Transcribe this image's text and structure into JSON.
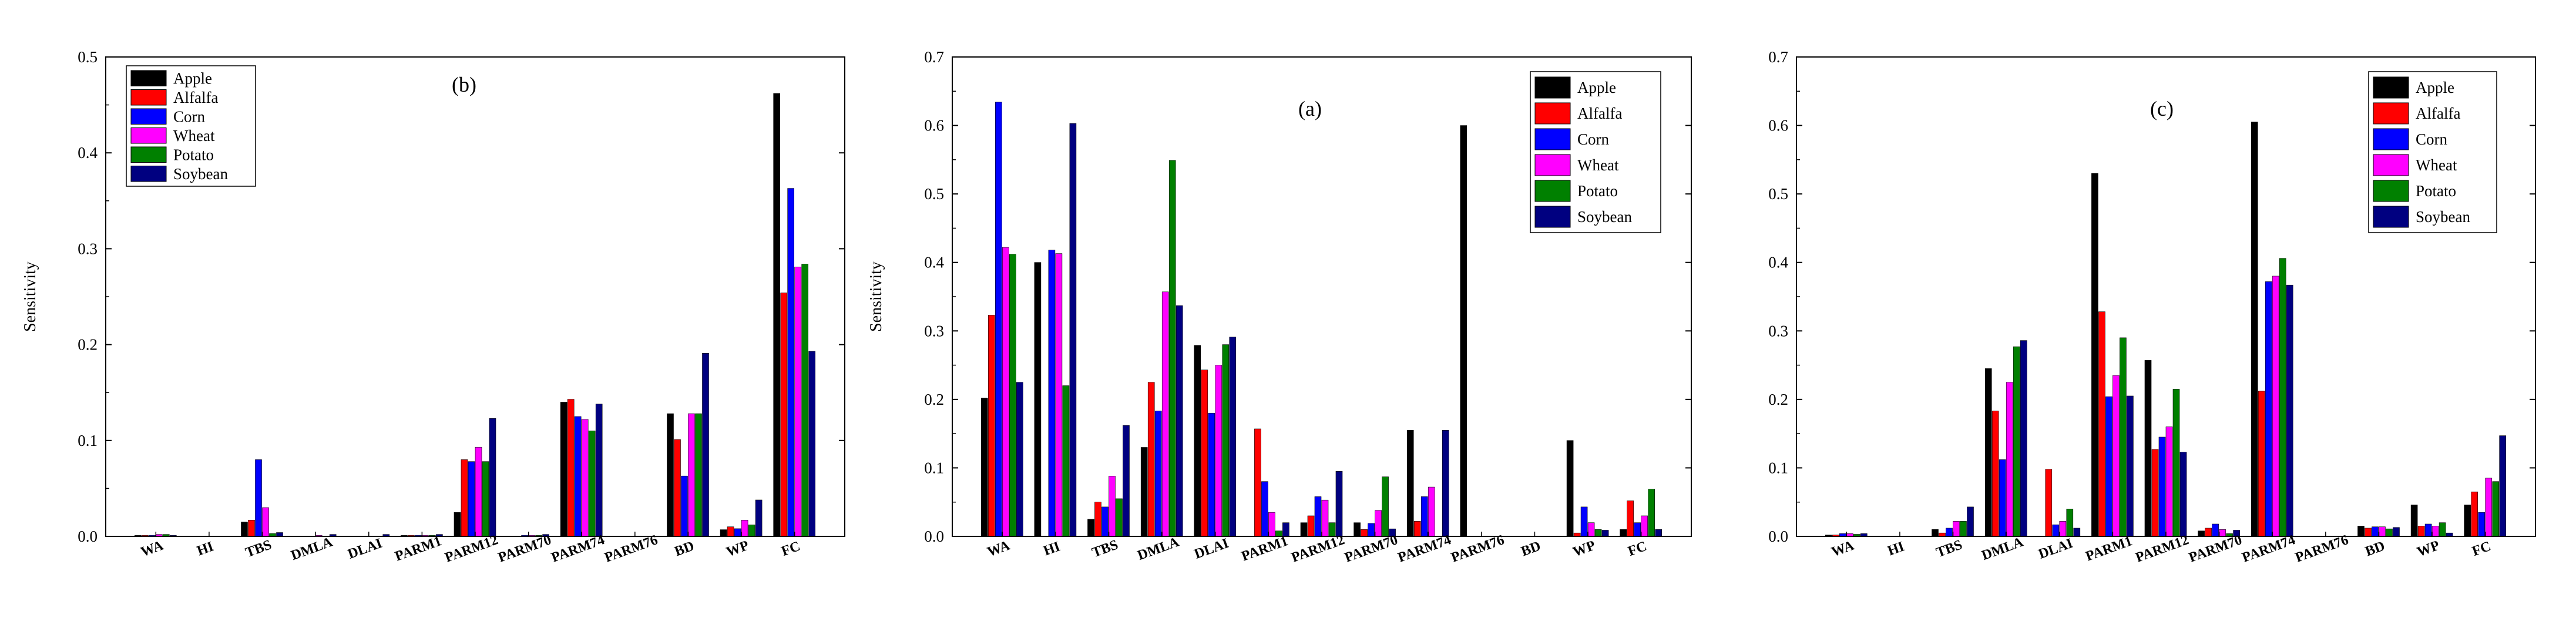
{
  "colors": {
    "Apple": "#000000",
    "Alfalfa": "#ff0000",
    "Corn": "#0000ff",
    "Wheat": "#ff00ff",
    "Potato": "#008000",
    "Soybean": "#000080"
  },
  "chart_data": [
    {
      "type": "bar",
      "panel": "(b)",
      "title": "(b)",
      "xlabel": "",
      "ylabel": "Sensitivity",
      "ylim": [
        0,
        0.5
      ],
      "yticks": [
        "0.0",
        "0.1",
        "0.2",
        "0.3",
        "0.4",
        "0.5"
      ],
      "categories": [
        "WA",
        "HI",
        "TBS",
        "DMLA",
        "DLAI",
        "PARM1",
        "PARM12",
        "PARM70",
        "PARM74",
        "PARM76",
        "BD",
        "WP",
        "FC"
      ],
      "legend_position": "top-left",
      "series": [
        {
          "name": "Apple",
          "values": [
            0.001,
            0.0,
            0.015,
            0.0,
            0.0,
            0.001,
            0.025,
            0.0,
            0.14,
            0.0,
            0.128,
            0.007,
            0.462
          ]
        },
        {
          "name": "Alfalfa",
          "values": [
            0.001,
            0.0,
            0.017,
            0.0,
            0.0,
            0.001,
            0.08,
            0.0,
            0.143,
            0.0,
            0.101,
            0.01,
            0.254
          ]
        },
        {
          "name": "Corn",
          "values": [
            0.001,
            0.0,
            0.08,
            0.0,
            0.0,
            0.001,
            0.078,
            0.001,
            0.125,
            0.0,
            0.063,
            0.008,
            0.363
          ]
        },
        {
          "name": "Wheat",
          "values": [
            0.002,
            0.0,
            0.03,
            0.001,
            0.0,
            0.001,
            0.093,
            0.001,
            0.122,
            0.0,
            0.128,
            0.017,
            0.281
          ]
        },
        {
          "name": "Potato",
          "values": [
            0.002,
            0.0,
            0.003,
            0.0,
            0.0,
            0.001,
            0.078,
            0.001,
            0.11,
            0.0,
            0.128,
            0.012,
            0.284
          ]
        },
        {
          "name": "Soybean",
          "values": [
            0.001,
            0.0,
            0.004,
            0.002,
            0.002,
            0.002,
            0.123,
            0.002,
            0.138,
            0.0,
            0.191,
            0.038,
            0.193
          ]
        }
      ]
    },
    {
      "type": "bar",
      "panel": "(a)",
      "title": "(a)",
      "xlabel": "",
      "ylabel": "Sensitivity",
      "ylim": [
        0,
        0.7
      ],
      "yticks": [
        "0.0",
        "0.1",
        "0.2",
        "0.3",
        "0.4",
        "0.5",
        "0.6",
        "0.7"
      ],
      "categories": [
        "WA",
        "HI",
        "TBS",
        "DMLA",
        "DLAI",
        "PARM1",
        "PARM12",
        "PARM70",
        "PARM74",
        "PARM76",
        "BD",
        "WP",
        "FC"
      ],
      "legend_position": "top-right",
      "series": [
        {
          "name": "Apple",
          "values": [
            0.202,
            0.4,
            0.025,
            0.13,
            0.279,
            0.0,
            0.02,
            0.02,
            0.155,
            0.6,
            0.0,
            0.14,
            0.01
          ]
        },
        {
          "name": "Alfalfa",
          "values": [
            0.323,
            0.0,
            0.05,
            0.225,
            0.243,
            0.157,
            0.03,
            0.01,
            0.022,
            0.0,
            0.0,
            0.005,
            0.052
          ]
        },
        {
          "name": "Corn",
          "values": [
            0.634,
            0.418,
            0.043,
            0.183,
            0.18,
            0.08,
            0.058,
            0.019,
            0.058,
            0.0,
            0.0,
            0.043,
            0.02
          ]
        },
        {
          "name": "Wheat",
          "values": [
            0.422,
            0.413,
            0.088,
            0.357,
            0.25,
            0.035,
            0.053,
            0.038,
            0.072,
            0.0,
            0.0,
            0.02,
            0.03
          ]
        },
        {
          "name": "Potato",
          "values": [
            0.412,
            0.22,
            0.055,
            0.549,
            0.28,
            0.008,
            0.02,
            0.087,
            0.0,
            0.0,
            0.0,
            0.01,
            0.069
          ]
        },
        {
          "name": "Soybean",
          "values": [
            0.225,
            0.603,
            0.162,
            0.337,
            0.291,
            0.02,
            0.095,
            0.011,
            0.155,
            0.0,
            0.0,
            0.009,
            0.01
          ]
        }
      ]
    },
    {
      "type": "bar",
      "panel": "(c)",
      "title": "(c)",
      "xlabel": "",
      "ylabel": "",
      "ylim": [
        0,
        0.7
      ],
      "yticks": [
        "0.0",
        "0.1",
        "0.2",
        "0.3",
        "0.4",
        "0.5",
        "0.6",
        "0.7"
      ],
      "categories": [
        "WA",
        "HI",
        "TBS",
        "DMLA",
        "DLAI",
        "PARM1",
        "PARM12",
        "PARM70",
        "PARM74",
        "PARM76",
        "BD",
        "WP",
        "FC"
      ],
      "legend_position": "top-right",
      "series": [
        {
          "name": "Apple",
          "values": [
            0.002,
            0.0,
            0.01,
            0.245,
            0.0,
            0.53,
            0.257,
            0.008,
            0.605,
            0.0,
            0.015,
            0.046,
            0.046
          ]
        },
        {
          "name": "Alfalfa",
          "values": [
            0.002,
            0.0,
            0.005,
            0.183,
            0.098,
            0.328,
            0.127,
            0.012,
            0.212,
            0.0,
            0.012,
            0.015,
            0.065
          ]
        },
        {
          "name": "Corn",
          "values": [
            0.004,
            0.0,
            0.012,
            0.112,
            0.017,
            0.204,
            0.145,
            0.018,
            0.372,
            0.0,
            0.014,
            0.018,
            0.035
          ]
        },
        {
          "name": "Wheat",
          "values": [
            0.004,
            0.0,
            0.022,
            0.225,
            0.022,
            0.235,
            0.16,
            0.01,
            0.38,
            0.0,
            0.014,
            0.015,
            0.085
          ]
        },
        {
          "name": "Potato",
          "values": [
            0.003,
            0.0,
            0.022,
            0.277,
            0.04,
            0.29,
            0.215,
            0.004,
            0.406,
            0.0,
            0.011,
            0.02,
            0.08
          ]
        },
        {
          "name": "Soybean",
          "values": [
            0.004,
            0.0,
            0.043,
            0.286,
            0.012,
            0.205,
            0.123,
            0.009,
            0.367,
            0.0,
            0.013,
            0.005,
            0.147
          ]
        }
      ]
    }
  ]
}
